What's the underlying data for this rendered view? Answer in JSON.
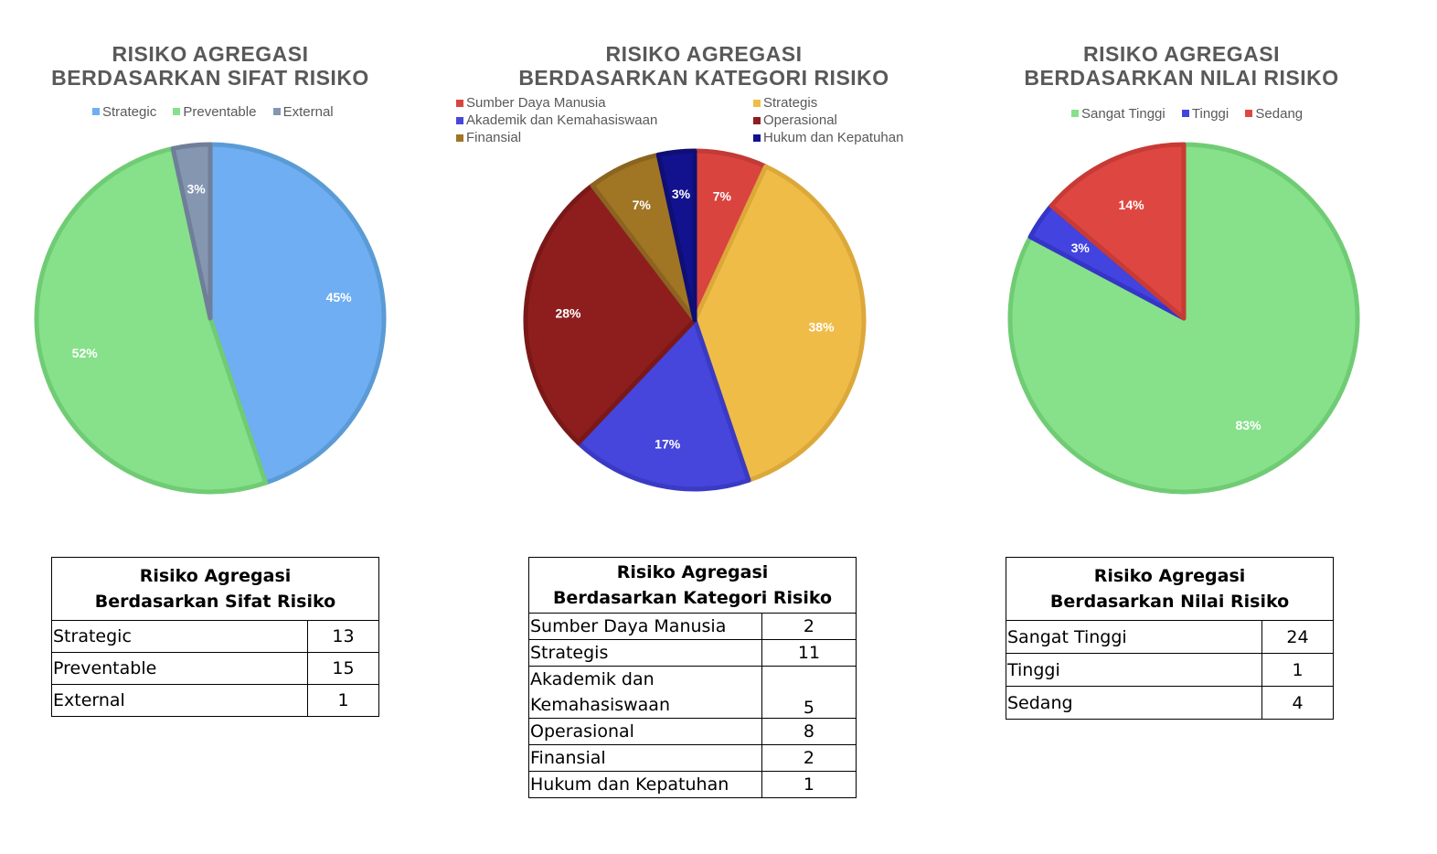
{
  "chart_data": [
    {
      "type": "pie",
      "title": [
        "RISIKO AGREGASI",
        "BERDASARKAN  SIFAT RISIKO"
      ],
      "categories": [
        "Strategic",
        "Preventable",
        "External"
      ],
      "values": [
        13,
        15,
        1
      ],
      "labels": [
        "45%",
        "52%",
        "3%"
      ],
      "colors": [
        "#6FAEF2",
        "#87E08A",
        "#8496B0"
      ],
      "edge_colors": [
        "#5B9BD5",
        "#70CC74",
        "#6F7F99"
      ],
      "legend": "top",
      "table": {
        "header": [
          "Risiko Agregasi",
          "Berdasarkan Sifat Risiko"
        ],
        "rows": [
          [
            "Strategic",
            "13"
          ],
          [
            "Preventable",
            "15"
          ],
          [
            "External",
            "1"
          ]
        ]
      }
    },
    {
      "type": "pie",
      "title": [
        "RISIKO AGREGASI",
        "BERDASARKAN  KATEGORI RISIKO"
      ],
      "categories": [
        "Sumber Daya Manusia",
        "Strategis",
        "Akademik dan Kemahasiswaan",
        "Operasional",
        "Finansial",
        "Hukum dan Kepatuhan"
      ],
      "values": [
        2,
        11,
        5,
        8,
        2,
        1
      ],
      "labels": [
        "7%",
        "38%",
        "17%",
        "28%",
        "7%",
        "3%"
      ],
      "slice_order": [
        0,
        1,
        2,
        3,
        4,
        5
      ],
      "colors": [
        "#D9443F",
        "#F0BC48",
        "#4646DC",
        "#8E1E1E",
        "#A07524",
        "#12128E"
      ],
      "edge_colors": [
        "#C33A36",
        "#DCA83A",
        "#3A3AC4",
        "#7A1818",
        "#8A6420",
        "#0E0E74"
      ],
      "legend": "top",
      "table": {
        "header": [
          "Risiko Agregasi",
          "Berdasarkan Kategori Risiko"
        ],
        "rows": [
          [
            "Sumber Daya Manusia",
            "2"
          ],
          [
            "Strategis",
            "11"
          ],
          [
            "Akademik dan Kemahasiswaan",
            "5"
          ],
          [
            "Operasional",
            "8"
          ],
          [
            "Finansial",
            "2"
          ],
          [
            "Hukum dan Kepatuhan",
            "1"
          ]
        ]
      }
    },
    {
      "type": "pie",
      "title": [
        "RISIKO AGREGASI",
        "BERDASARKAN  NILAI RISIKO"
      ],
      "categories": [
        "Sangat Tinggi",
        "Tinggi",
        "Sedang"
      ],
      "values": [
        24,
        1,
        4
      ],
      "labels": [
        "83%",
        "3%",
        "14%"
      ],
      "colors": [
        "#87E08A",
        "#4343E0",
        "#DE4741"
      ],
      "edge_colors": [
        "#70CC74",
        "#3535C8",
        "#C83A35"
      ],
      "legend": "top",
      "table": {
        "header": [
          "Risiko Agregasi",
          "Berdasarkan Nilai Risiko"
        ],
        "rows": [
          [
            "Sangat Tinggi",
            "24"
          ],
          [
            "Tinggi",
            "1"
          ],
          [
            "Sedang",
            "4"
          ]
        ]
      }
    }
  ]
}
